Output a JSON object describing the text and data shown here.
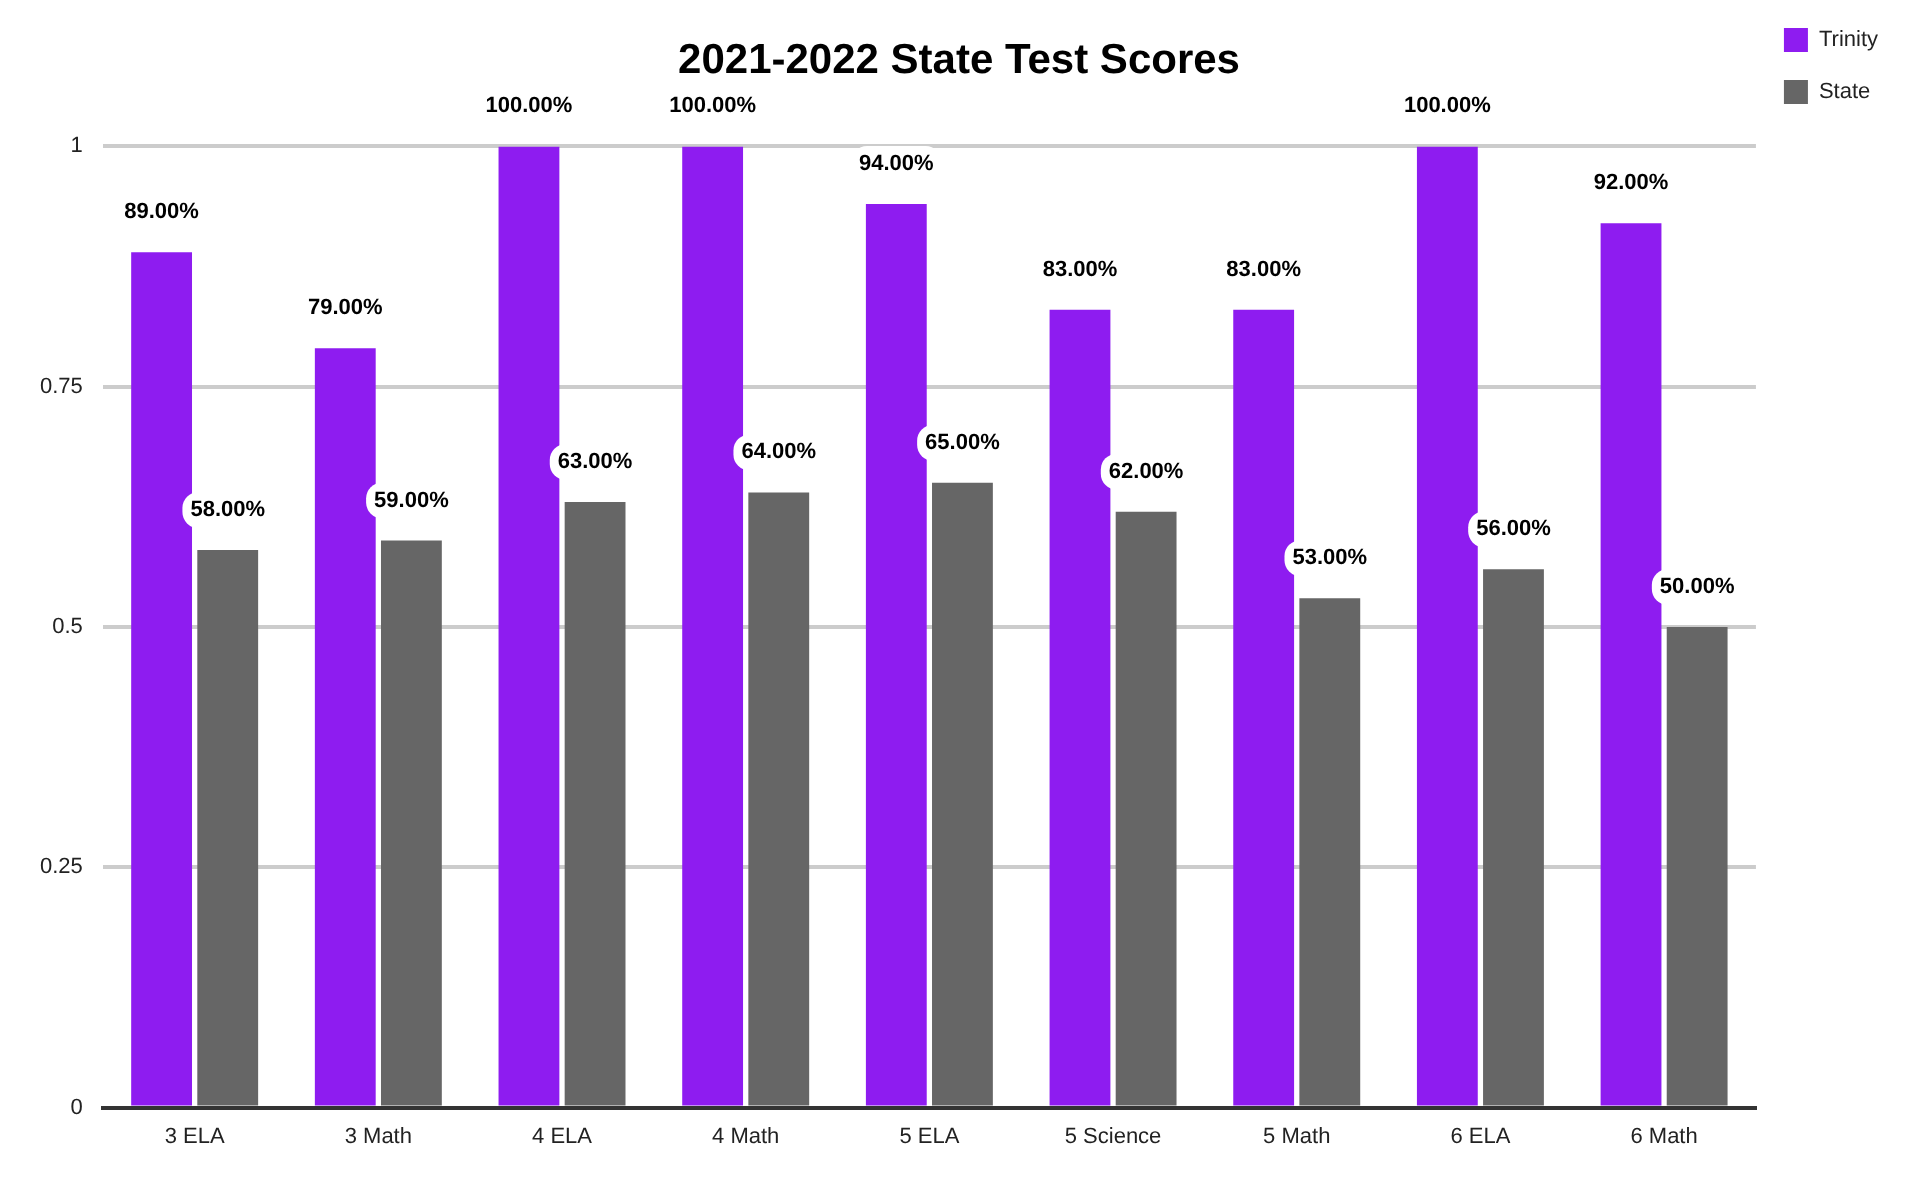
{
  "chart_data": {
    "type": "bar",
    "title": "2021-2022 State Test Scores",
    "categories": [
      "3 ELA",
      "3 Math",
      "4 ELA",
      "4 Math",
      "5 ELA",
      "5 Science",
      "5 Math",
      "6 ELA",
      "6 Math"
    ],
    "series": [
      {
        "name": "Trinity",
        "color": "#8e1cf0",
        "values": [
          0.89,
          0.79,
          1,
          1,
          0.94,
          0.83,
          0.83,
          1,
          0.92
        ],
        "value_labels": [
          "89.00%",
          "79.00%",
          "100.00%",
          "100.00%",
          "94.00%",
          "83.00%",
          "83.00%",
          "100.00%",
          "92.00%"
        ]
      },
      {
        "name": "State",
        "color": "#666666",
        "values": [
          0.58,
          0.59,
          0.63,
          0.64,
          0.65,
          0.62,
          0.53,
          0.56,
          0.5
        ],
        "value_labels": [
          "58.00%",
          "59.00%",
          "63.00%",
          "64.00%",
          "65.00%",
          "62.00%",
          "53.00%",
          "56.00%",
          "50.00%"
        ]
      }
    ],
    "ylim": [
      0,
      1
    ],
    "yticks": [
      0,
      0.25,
      0.5,
      0.75,
      1
    ],
    "grid": "y",
    "legend": "top right"
  }
}
